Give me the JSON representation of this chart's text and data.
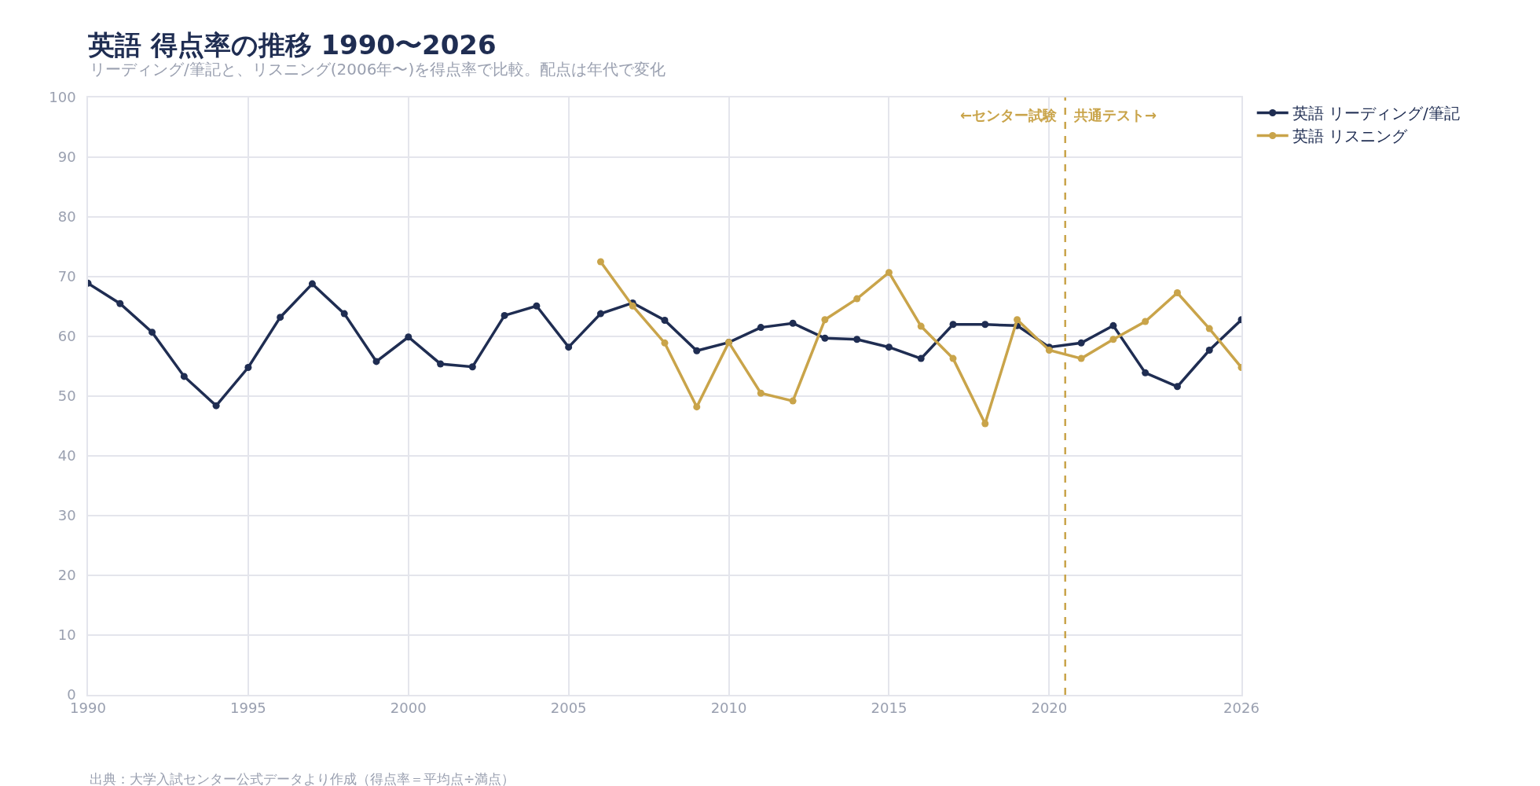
{
  "chart_data": {
    "type": "line",
    "title": "英語 得点率の推移 1990〜2026",
    "subtitle": "リーディング/筆記と、リスニング(2006年〜)を得点率で比較。配点は年代で変化",
    "x": [
      1990,
      1991,
      1992,
      1993,
      1994,
      1995,
      1996,
      1997,
      1998,
      1999,
      2000,
      2001,
      2002,
      2003,
      2004,
      2005,
      2006,
      2007,
      2008,
      2009,
      2010,
      2011,
      2012,
      2013,
      2014,
      2015,
      2016,
      2017,
      2018,
      2019,
      2020,
      2021,
      2022,
      2023,
      2024,
      2025,
      2026
    ],
    "series": [
      {
        "name": "英語 リーディング/筆記",
        "color": "#1f2d52",
        "values": [
          68.9,
          65.5,
          60.7,
          53.3,
          48.4,
          54.8,
          63.2,
          68.8,
          63.8,
          55.8,
          59.9,
          55.4,
          54.9,
          63.5,
          65.1,
          58.2,
          63.8,
          65.6,
          62.7,
          57.6,
          59.0,
          61.5,
          62.2,
          59.7,
          59.5,
          58.2,
          56.3,
          62.0,
          62.0,
          61.8,
          58.2,
          58.9,
          61.8,
          53.9,
          51.6,
          57.7,
          62.8
        ]
      },
      {
        "name": "英語 リスニング",
        "color": "#c9a44a",
        "values": [
          null,
          null,
          null,
          null,
          null,
          null,
          null,
          null,
          null,
          null,
          null,
          null,
          null,
          null,
          null,
          null,
          72.5,
          65.1,
          58.9,
          48.2,
          59.0,
          50.5,
          49.2,
          62.8,
          66.3,
          70.7,
          61.7,
          56.3,
          45.4,
          62.8,
          57.7,
          56.3,
          59.5,
          62.5,
          67.3,
          61.3,
          54.8
        ]
      }
    ],
    "xlim": [
      1990,
      2026
    ],
    "xticks": [
      1990,
      1995,
      2000,
      2005,
      2010,
      2015,
      2020,
      2026
    ],
    "ylim": [
      0,
      100
    ],
    "yticks": [
      0,
      10,
      20,
      30,
      40,
      50,
      60,
      70,
      80,
      90,
      100
    ],
    "grid": true,
    "legend": "top right",
    "marker": "circle",
    "line_style": "solid",
    "ref_lines": [
      {
        "axis": "x",
        "value": 2020.5,
        "label": null,
        "color": "#c9a44a",
        "line_style": "dashed"
      }
    ],
    "annotations": [
      {
        "text": "←センター試験",
        "x": 2020.5,
        "y": 97
      },
      {
        "text": "共通テスト→",
        "x": 2020.5,
        "y": 97
      },
      "出典：大学入試センター公式データより作成（得点率＝平均点÷満点）"
    ]
  }
}
